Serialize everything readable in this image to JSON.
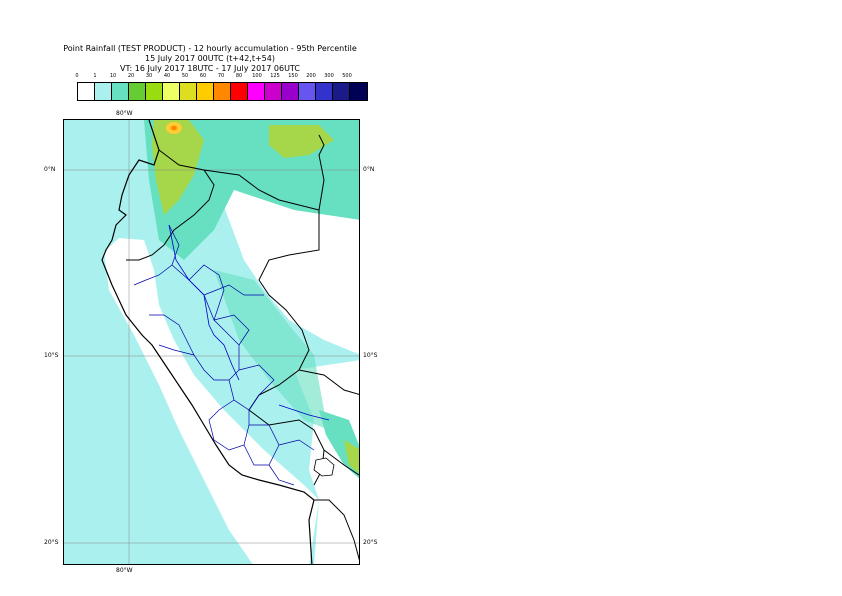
{
  "title": {
    "line1": "Point Rainfall (TEST PRODUCT) - 12 hourly accumulation - 95th Percentile",
    "line2": "15 July 2017 00UTC (t+42,t+54)",
    "line3": "VT: 16 July 2017 18UTC - 17 July 2017 06UTC"
  },
  "legend": {
    "ticks": [
      "0",
      "1",
      "10",
      "20",
      "30",
      "40",
      "50",
      "60",
      "70",
      "80",
      "100",
      "125",
      "150",
      "200",
      "300",
      "500"
    ],
    "colors": [
      "#ffffff",
      "#aaf0ee",
      "#66e0c0",
      "#66cc33",
      "#99dd11",
      "#eeff66",
      "#dddd22",
      "#ffcc00",
      "#ff8800",
      "#ff0000",
      "#ff00ff",
      "#cc00cc",
      "#9900cc",
      "#6655ee",
      "#3333cc",
      "#1a1a88",
      "#000055"
    ]
  },
  "axes": {
    "top_lon": "80°W",
    "bottom_lon": "80°W",
    "lat_left": [
      "0°N",
      "10°S",
      "20°S"
    ],
    "lat_right": [
      "0°N",
      "10°S",
      "20°S"
    ]
  },
  "map": {
    "ocean_fill": "#aaf0ee",
    "land_dry_fill": "#ffffff",
    "moderate_fill": "#66e0c0",
    "heavy_fill": "#a6d74a",
    "peak_fill": "#ffcc33",
    "border_color": "#000000",
    "river_color": "#0000aa",
    "gridline_color": "#888888"
  }
}
